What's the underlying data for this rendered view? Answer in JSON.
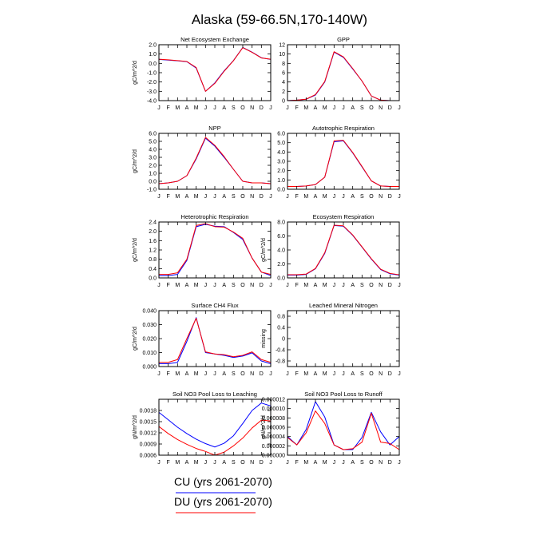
{
  "title": "Alaska (59-66.5N,170-140W)",
  "months": [
    "J",
    "F",
    "M",
    "A",
    "M",
    "J",
    "J",
    "A",
    "S",
    "O",
    "N",
    "D",
    "J"
  ],
  "colors": {
    "cu": "#0000ff",
    "du": "#ff0000"
  },
  "legend": [
    {
      "label": "CU (yrs 2061-2070)",
      "color": "#0000ff"
    },
    {
      "label": "DU (yrs 2061-2070)",
      "color": "#ff0000"
    }
  ],
  "chart_data": [
    {
      "type": "line",
      "title": "Net Ecosystem Exchange",
      "ylabel": "gC/m^2/d",
      "ylim": [
        -4.0,
        2.0
      ],
      "yticks": [
        2.0,
        1.0,
        0.0,
        -1.0,
        -2.0,
        -3.0,
        -4.0
      ],
      "yticklabels": [
        "2.0",
        "1.0",
        "0.0",
        "-1.0",
        "-2.0",
        "-3.0",
        "-4.0"
      ],
      "series": [
        {
          "name": "CU (yrs 2061-2070)",
          "values": [
            0.42,
            0.35,
            0.28,
            0.18,
            -0.5,
            -3.0,
            -2.1,
            -0.8,
            0.3,
            1.7,
            1.2,
            0.6,
            0.42
          ]
        },
        {
          "name": "DU (yrs 2061-2070)",
          "values": [
            0.45,
            0.38,
            0.3,
            0.2,
            -0.45,
            -3.0,
            -2.15,
            -0.85,
            0.28,
            1.68,
            1.18,
            0.58,
            0.45
          ]
        }
      ]
    },
    {
      "type": "line",
      "title": "GPP",
      "ylabel": "",
      "ylim": [
        0,
        12
      ],
      "yticks": [
        12,
        10,
        8,
        6,
        4,
        2,
        0
      ],
      "yticklabels": [
        "12",
        "10",
        "8",
        "6",
        "4",
        "2",
        "0"
      ],
      "series": [
        {
          "name": "CU (yrs 2061-2070)",
          "values": [
            0.0,
            0.1,
            0.3,
            1.2,
            4.0,
            10.4,
            9.3,
            6.8,
            4.2,
            1.0,
            0.1,
            0.0,
            0.0
          ]
        },
        {
          "name": "DU (yrs 2061-2070)",
          "values": [
            0.0,
            0.1,
            0.3,
            1.3,
            4.1,
            10.5,
            9.4,
            6.9,
            4.2,
            1.0,
            0.1,
            0.0,
            0.0
          ]
        }
      ]
    },
    {
      "type": "line",
      "title": "NPP",
      "ylabel": "gC/m^2/d",
      "ylim": [
        -1.0,
        6.0
      ],
      "yticks": [
        6.0,
        5.0,
        4.0,
        3.0,
        2.0,
        1.0,
        0.0,
        -1.0
      ],
      "yticklabels": [
        "6.0",
        "5.0",
        "4.0",
        "3.0",
        "2.0",
        "1.0",
        "0.0",
        "-1.0"
      ],
      "series": [
        {
          "name": "CU (yrs 2061-2070)",
          "values": [
            -0.3,
            -0.2,
            0.0,
            0.7,
            2.8,
            5.4,
            4.4,
            3.0,
            1.5,
            0.0,
            -0.2,
            -0.2,
            -0.3
          ]
        },
        {
          "name": "DU (yrs 2061-2070)",
          "values": [
            -0.3,
            -0.2,
            0.0,
            0.7,
            2.9,
            5.5,
            4.5,
            3.1,
            1.5,
            0.0,
            -0.2,
            -0.2,
            -0.3
          ]
        }
      ]
    },
    {
      "type": "line",
      "title": "Autotrophic Respiration",
      "ylabel": "",
      "ylim": [
        0.0,
        6.0
      ],
      "yticks": [
        6.0,
        5.0,
        4.0,
        3.0,
        2.0,
        1.0,
        0.0
      ],
      "yticklabels": [
        "6.0",
        "5.0",
        "4.0",
        "3.0",
        "2.0",
        "1.0",
        "0.0"
      ],
      "series": [
        {
          "name": "CU (yrs 2061-2070)",
          "values": [
            0.3,
            0.3,
            0.35,
            0.5,
            1.3,
            5.1,
            5.2,
            3.9,
            2.4,
            0.9,
            0.35,
            0.3,
            0.3
          ]
        },
        {
          "name": "DU (yrs 2061-2070)",
          "values": [
            0.3,
            0.3,
            0.35,
            0.5,
            1.3,
            5.2,
            5.25,
            3.95,
            2.45,
            0.9,
            0.35,
            0.3,
            0.3
          ]
        }
      ]
    },
    {
      "type": "line",
      "title": "Heterotrophic Respiration",
      "ylabel": "gC/m^2/d",
      "ylim": [
        0.0,
        2.4
      ],
      "yticks": [
        2.4,
        2.0,
        1.6,
        1.2,
        0.8,
        0.4,
        0.0
      ],
      "yticklabels": [
        "2.4",
        "2.0",
        "1.6",
        "1.2",
        "0.8",
        "0.4",
        "0.0"
      ],
      "series": [
        {
          "name": "CU (yrs 2061-2070)",
          "values": [
            0.1,
            0.1,
            0.15,
            0.75,
            2.2,
            2.3,
            2.22,
            2.2,
            1.95,
            1.65,
            0.85,
            0.25,
            0.1
          ]
        },
        {
          "name": "DU (yrs 2061-2070)",
          "values": [
            0.15,
            0.15,
            0.22,
            0.8,
            2.25,
            2.33,
            2.2,
            2.18,
            1.97,
            1.7,
            0.85,
            0.25,
            0.15
          ]
        }
      ]
    },
    {
      "type": "line",
      "title": "Ecosystem Respiration",
      "ylabel": "gC/m^2/d",
      "ylim": [
        0.0,
        8.0
      ],
      "yticks": [
        8.0,
        6.0,
        4.0,
        2.0,
        0.0
      ],
      "yticklabels": [
        "8.0",
        "6.0",
        "4.0",
        "2.0",
        "0.0"
      ],
      "series": [
        {
          "name": "CU (yrs 2061-2070)",
          "values": [
            0.4,
            0.4,
            0.5,
            1.3,
            3.5,
            7.5,
            7.4,
            6.1,
            4.4,
            2.7,
            1.2,
            0.6,
            0.4
          ]
        },
        {
          "name": "DU (yrs 2061-2070)",
          "values": [
            0.45,
            0.45,
            0.55,
            1.35,
            3.6,
            7.55,
            7.45,
            6.15,
            4.45,
            2.75,
            1.25,
            0.65,
            0.45
          ]
        }
      ]
    },
    {
      "type": "line",
      "title": "Surface CH4 Flux",
      "ylabel": "gC/m^2/d",
      "ylim": [
        0.0,
        0.04
      ],
      "yticks": [
        0.04,
        0.03,
        0.02,
        0.01,
        0.0
      ],
      "yticklabels": [
        "0.040",
        "0.030",
        "0.020",
        "0.010",
        "0.000"
      ],
      "series": [
        {
          "name": "CU (yrs 2061-2070)",
          "values": [
            0.002,
            0.002,
            0.003,
            0.018,
            0.035,
            0.01,
            0.009,
            0.008,
            0.0065,
            0.0075,
            0.0098,
            0.004,
            0.002
          ]
        },
        {
          "name": "DU (yrs 2061-2070)",
          "values": [
            0.003,
            0.003,
            0.005,
            0.02,
            0.0345,
            0.0105,
            0.009,
            0.0085,
            0.007,
            0.008,
            0.0105,
            0.005,
            0.003
          ]
        }
      ]
    },
    {
      "type": "line",
      "title": "Leached Mineral Nitrogen",
      "ylabel": "missing",
      "ylim": [
        -1.0,
        1.0
      ],
      "yticks": [
        0.8,
        0.4,
        0.0,
        -0.4,
        -0.8
      ],
      "yticklabels": [
        "0.8",
        "0.4",
        "0",
        "-0.4",
        "-0.8"
      ],
      "series": []
    },
    {
      "type": "line",
      "title": "Soil NO3 Pool Loss to Leaching",
      "ylabel": "gN/m^2/d",
      "ylim": [
        0.0006,
        0.0021
      ],
      "yticks": [
        0.0018,
        0.0015,
        0.0012,
        0.0009,
        0.0006
      ],
      "yticklabels": [
        "0.0018",
        "0.0015",
        "0.0012",
        "0.0009",
        "0.0006"
      ],
      "series": [
        {
          "name": "CU (yrs 2061-2070)",
          "values": [
            0.00175,
            0.00155,
            0.00135,
            0.00118,
            0.00103,
            0.00091,
            0.00082,
            0.00092,
            0.00112,
            0.00145,
            0.0018,
            0.002,
            0.00192
          ]
        },
        {
          "name": "DU (yrs 2061-2070)",
          "values": [
            0.00137,
            0.00118,
            0.00102,
            0.00089,
            0.00078,
            0.0007,
            0.0006,
            0.00068,
            0.00085,
            0.00106,
            0.00133,
            0.00154,
            0.00152
          ]
        }
      ]
    },
    {
      "type": "line",
      "title": "Soil NO3 Pool Loss to Runoff",
      "ylabel": "gN/m^2/d",
      "ylim": [
        0.0,
        1.2e-05
      ],
      "yticks": [
        1.2e-05,
        1e-05,
        8e-06,
        6e-06,
        4e-06,
        2e-06,
        0.0
      ],
      "yticklabels": [
        "0.000012",
        "0.000010",
        "0.000008",
        "0.000006",
        "0.000004",
        "0.000002",
        "0.000000"
      ],
      "series": [
        {
          "name": "CU (yrs 2061-2070)",
          "values": [
            4e-06,
            2.2e-06,
            5.5e-06,
            1.15e-05,
            8.2e-06,
            2.2e-06,
            1.2e-06,
            1.2e-06,
            3.8e-06,
            9.2e-06,
            5e-06,
            2.2e-06,
            4e-06
          ]
        },
        {
          "name": "DU (yrs 2061-2070)",
          "values": [
            3.8e-06,
            2.2e-06,
            4.8e-06,
            9.5e-06,
            6.8e-06,
            2.2e-06,
            1.2e-06,
            1.4e-06,
            2.8e-06,
            9e-06,
            2.8e-06,
            2.5e-06,
            1.2e-06
          ]
        }
      ]
    }
  ]
}
